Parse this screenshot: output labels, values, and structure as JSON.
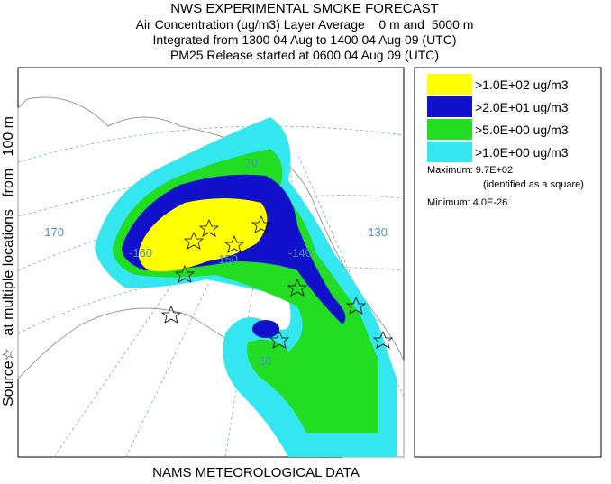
{
  "header": {
    "lines": [
      "NWS EXPERIMENTAL SMOKE FORECAST",
      "Air Concentration (ug/m3) Layer Average    0 m and  5000 m",
      "Integrated from 1300 04 Aug to 1400 04 Aug 09 (UTC)",
      "PM25 Release started at 0600 04 Aug 09 (UTC)"
    ]
  },
  "source_label": "Source☆   at multiple locations   from   100 m",
  "footer": "NAMS METEOROLOGICAL DATA",
  "legend": {
    "items": [
      ">1.0E+02 ug/m3",
      ">2.0E+01 ug/m3",
      ">5.0E+00 ug/m3",
      ">1.0E+00 ug/m3"
    ],
    "maximum": "Maximum: 9.7E+02",
    "note": "(identified as a square)",
    "minimum": "Minimum: 4.0E-26"
  },
  "map": {
    "labels": [
      "-170",
      "-160",
      "-150",
      "-140",
      "-130",
      "70",
      "60"
    ]
  }
}
